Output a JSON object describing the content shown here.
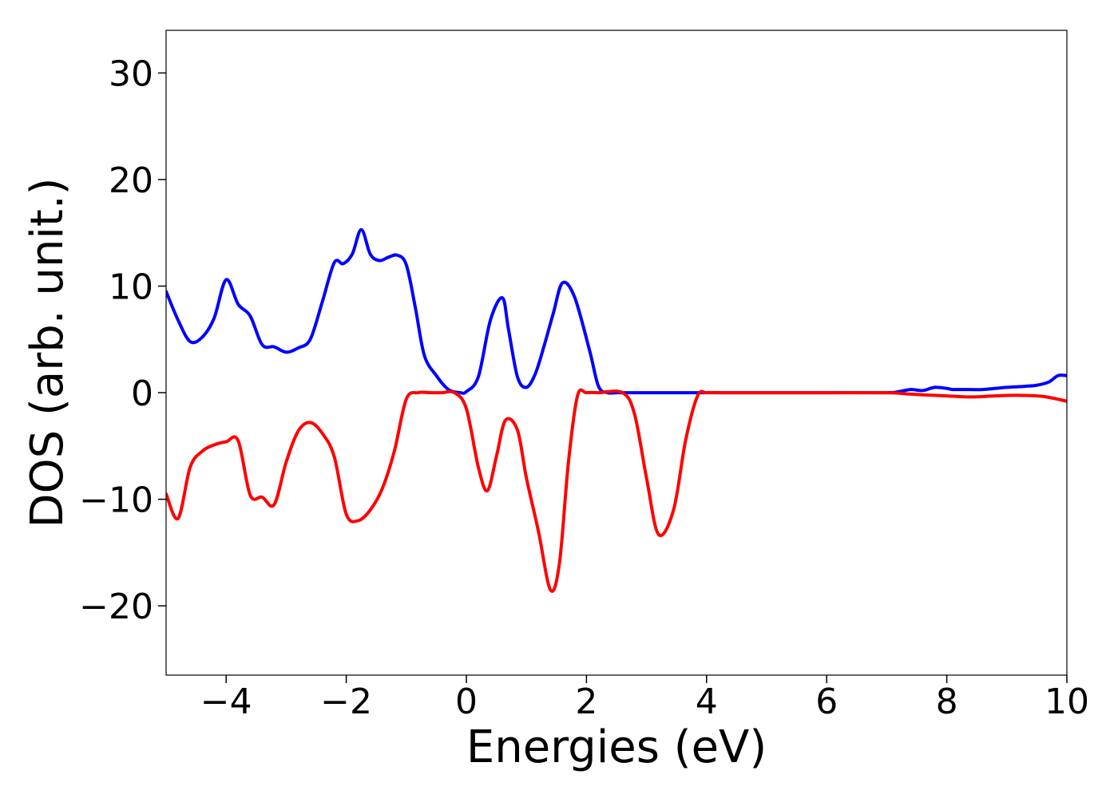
{
  "chart_data": {
    "type": "line",
    "title": "",
    "xlabel": "Energies (eV)",
    "ylabel": "DOS (arb. unit.)",
    "xlim": [
      -5,
      10
    ],
    "ylim": [
      -26.5,
      34
    ],
    "grid": false,
    "legend": "none",
    "x_ticks": [
      -4,
      -2,
      0,
      2,
      4,
      6,
      8,
      10
    ],
    "x_tick_labels": [
      "−4",
      "−2",
      "0",
      "2",
      "4",
      "6",
      "8",
      "10"
    ],
    "y_ticks": [
      -20,
      -10,
      0,
      10,
      20,
      30
    ],
    "y_tick_labels": [
      "−20",
      "−10",
      "0",
      "10",
      "20",
      "30"
    ],
    "series": [
      {
        "color": "#0000ff",
        "x": [
          -5.0,
          -4.8,
          -4.6,
          -4.4,
          -4.2,
          -4.0,
          -3.8,
          -3.6,
          -3.4,
          -3.2,
          -3.0,
          -2.8,
          -2.6,
          -2.4,
          -2.2,
          -2.05,
          -1.9,
          -1.75,
          -1.6,
          -1.45,
          -1.3,
          -1.15,
          -1.0,
          -0.85,
          -0.7,
          -0.5,
          -0.3,
          -0.1,
          0.0,
          0.2,
          0.4,
          0.6,
          0.7,
          0.85,
          1.0,
          1.15,
          1.3,
          1.45,
          1.6,
          1.8,
          2.05,
          2.2,
          2.35,
          2.5,
          2.65,
          2.8,
          3.0,
          4.0,
          5.0,
          6.0,
          7.0,
          7.2,
          7.4,
          7.6,
          7.8,
          8.0,
          8.1,
          8.3,
          8.6,
          9.0,
          9.3,
          9.5,
          9.7,
          9.85,
          10.0
        ],
        "values": [
          9.5,
          6.8,
          4.8,
          5.2,
          7.0,
          10.6,
          8.3,
          7.2,
          4.5,
          4.3,
          3.8,
          4.2,
          5.0,
          8.5,
          12.2,
          12.1,
          13.0,
          15.3,
          13.0,
          12.4,
          12.7,
          12.9,
          12.0,
          8.0,
          3.5,
          1.6,
          0.3,
          0.0,
          0.1,
          1.5,
          6.8,
          8.9,
          6.0,
          1.5,
          0.5,
          1.8,
          4.5,
          7.5,
          10.3,
          9.0,
          4.0,
          0.6,
          0.0,
          0.0,
          0.0,
          0.0,
          0.0,
          0.0,
          0.0,
          0.0,
          0.0,
          0.1,
          0.3,
          0.2,
          0.5,
          0.4,
          0.3,
          0.3,
          0.3,
          0.5,
          0.6,
          0.7,
          1.0,
          1.6,
          1.6
        ]
      },
      {
        "color": "#ff0000",
        "x": [
          -5.0,
          -4.8,
          -4.6,
          -4.4,
          -4.2,
          -4.0,
          -3.8,
          -3.6,
          -3.4,
          -3.2,
          -3.0,
          -2.8,
          -2.6,
          -2.4,
          -2.2,
          -2.0,
          -1.8,
          -1.6,
          -1.4,
          -1.2,
          -1.0,
          -0.8,
          -0.6,
          -0.4,
          -0.2,
          0.0,
          0.2,
          0.35,
          0.5,
          0.65,
          0.85,
          1.0,
          1.2,
          1.4,
          1.55,
          1.7,
          1.85,
          2.0,
          2.2,
          2.6,
          2.8,
          3.0,
          3.2,
          3.45,
          3.65,
          3.85,
          4.0,
          4.2,
          5.0,
          6.0,
          7.0,
          7.3,
          7.6,
          8.0,
          8.4,
          8.8,
          9.2,
          9.6,
          10.0
        ],
        "values": [
          -9.5,
          -11.8,
          -7.0,
          -5.5,
          -4.9,
          -4.6,
          -4.5,
          -9.6,
          -9.8,
          -10.5,
          -6.5,
          -3.6,
          -2.8,
          -3.8,
          -6.0,
          -11.4,
          -12.0,
          -11.0,
          -9.0,
          -5.5,
          -0.6,
          0.0,
          0.0,
          0.0,
          0.0,
          -1.5,
          -7.0,
          -9.2,
          -6.0,
          -2.6,
          -3.5,
          -8.0,
          -13.0,
          -18.5,
          -16.0,
          -6.5,
          -0.3,
          0.0,
          0.0,
          0.0,
          -2.0,
          -8.0,
          -13.3,
          -11.0,
          -4.5,
          -0.3,
          0.0,
          0.0,
          0.0,
          0.0,
          0.0,
          -0.1,
          -0.2,
          -0.3,
          -0.4,
          -0.3,
          -0.25,
          -0.35,
          -0.8
        ]
      }
    ]
  }
}
